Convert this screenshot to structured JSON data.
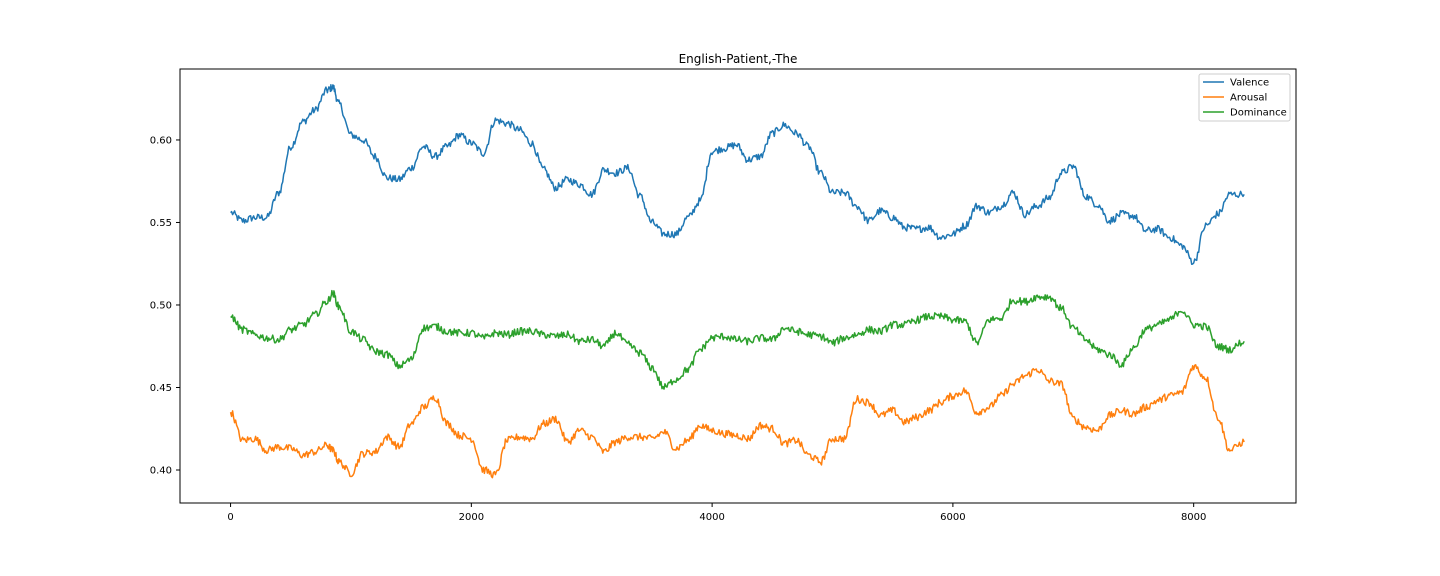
{
  "chart_data": {
    "type": "line",
    "title": "English-Patient,-The",
    "xlabel": "",
    "ylabel": "",
    "xlim": [
      -420,
      8850
    ],
    "ylim": [
      0.38,
      0.643
    ],
    "xticks": [
      0,
      2000,
      4000,
      6000,
      8000
    ],
    "xtick_labels": [
      "0",
      "2000",
      "4000",
      "6000",
      "8000"
    ],
    "yticks": [
      0.4,
      0.45,
      0.5,
      0.55,
      0.6
    ],
    "ytick_labels": [
      "0.40",
      "0.45",
      "0.50",
      "0.55",
      "0.60"
    ],
    "grid": false,
    "legend_position": "top-right",
    "x": [
      0,
      100,
      200,
      300,
      400,
      500,
      600,
      700,
      800,
      850,
      900,
      1000,
      1100,
      1200,
      1300,
      1400,
      1500,
      1600,
      1700,
      1800,
      1900,
      2000,
      2100,
      2200,
      2300,
      2400,
      2500,
      2600,
      2700,
      2800,
      2900,
      3000,
      3100,
      3200,
      3300,
      3400,
      3500,
      3600,
      3700,
      3800,
      3900,
      4000,
      4100,
      4200,
      4300,
      4400,
      4500,
      4600,
      4700,
      4800,
      4900,
      5000,
      5100,
      5200,
      5300,
      5400,
      5500,
      5600,
      5700,
      5800,
      5900,
      6000,
      6100,
      6200,
      6300,
      6400,
      6500,
      6600,
      6700,
      6800,
      6900,
      7000,
      7100,
      7200,
      7300,
      7400,
      7500,
      7600,
      7700,
      7800,
      7900,
      8000,
      8100,
      8200,
      8300,
      8420
    ],
    "series": [
      {
        "name": "Valence",
        "color": "#1f77b4",
        "values": [
          0.556,
          0.551,
          0.553,
          0.553,
          0.568,
          0.596,
          0.611,
          0.618,
          0.63,
          0.632,
          0.622,
          0.603,
          0.6,
          0.59,
          0.577,
          0.576,
          0.583,
          0.596,
          0.59,
          0.596,
          0.603,
          0.598,
          0.592,
          0.612,
          0.61,
          0.606,
          0.598,
          0.582,
          0.571,
          0.576,
          0.573,
          0.567,
          0.582,
          0.58,
          0.583,
          0.566,
          0.55,
          0.543,
          0.543,
          0.553,
          0.563,
          0.593,
          0.595,
          0.597,
          0.588,
          0.59,
          0.604,
          0.609,
          0.604,
          0.596,
          0.58,
          0.568,
          0.568,
          0.56,
          0.551,
          0.557,
          0.553,
          0.547,
          0.546,
          0.547,
          0.541,
          0.543,
          0.548,
          0.56,
          0.556,
          0.56,
          0.568,
          0.555,
          0.56,
          0.565,
          0.58,
          0.584,
          0.566,
          0.561,
          0.551,
          0.555,
          0.554,
          0.545,
          0.546,
          0.541,
          0.536,
          0.526,
          0.548,
          0.555,
          0.567,
          0.567
        ]
      },
      {
        "name": "Arousal",
        "color": "#ff7f0e",
        "values": [
          0.435,
          0.418,
          0.419,
          0.412,
          0.414,
          0.413,
          0.409,
          0.411,
          0.415,
          0.412,
          0.405,
          0.398,
          0.41,
          0.411,
          0.42,
          0.414,
          0.428,
          0.438,
          0.444,
          0.428,
          0.421,
          0.419,
          0.4,
          0.397,
          0.418,
          0.42,
          0.419,
          0.428,
          0.431,
          0.417,
          0.424,
          0.42,
          0.411,
          0.417,
          0.42,
          0.42,
          0.419,
          0.423,
          0.413,
          0.418,
          0.427,
          0.424,
          0.422,
          0.421,
          0.419,
          0.427,
          0.425,
          0.416,
          0.418,
          0.409,
          0.405,
          0.419,
          0.419,
          0.443,
          0.441,
          0.433,
          0.436,
          0.429,
          0.432,
          0.436,
          0.441,
          0.445,
          0.448,
          0.435,
          0.438,
          0.445,
          0.452,
          0.457,
          0.461,
          0.454,
          0.452,
          0.431,
          0.426,
          0.424,
          0.433,
          0.436,
          0.434,
          0.438,
          0.442,
          0.445,
          0.447,
          0.463,
          0.456,
          0.432,
          0.412,
          0.417
        ]
      },
      {
        "name": "Dominance",
        "color": "#2ca02c",
        "values": [
          0.493,
          0.485,
          0.482,
          0.48,
          0.479,
          0.485,
          0.488,
          0.494,
          0.502,
          0.507,
          0.499,
          0.484,
          0.479,
          0.472,
          0.47,
          0.463,
          0.467,
          0.486,
          0.487,
          0.484,
          0.483,
          0.483,
          0.48,
          0.483,
          0.482,
          0.484,
          0.484,
          0.482,
          0.481,
          0.482,
          0.478,
          0.479,
          0.475,
          0.483,
          0.476,
          0.471,
          0.462,
          0.45,
          0.455,
          0.461,
          0.473,
          0.48,
          0.481,
          0.479,
          0.478,
          0.48,
          0.479,
          0.486,
          0.484,
          0.482,
          0.481,
          0.477,
          0.48,
          0.482,
          0.485,
          0.484,
          0.488,
          0.488,
          0.491,
          0.493,
          0.493,
          0.491,
          0.49,
          0.477,
          0.491,
          0.492,
          0.503,
          0.502,
          0.505,
          0.505,
          0.498,
          0.486,
          0.479,
          0.473,
          0.47,
          0.464,
          0.474,
          0.485,
          0.488,
          0.491,
          0.497,
          0.488,
          0.487,
          0.475,
          0.473,
          0.478
        ]
      }
    ]
  }
}
